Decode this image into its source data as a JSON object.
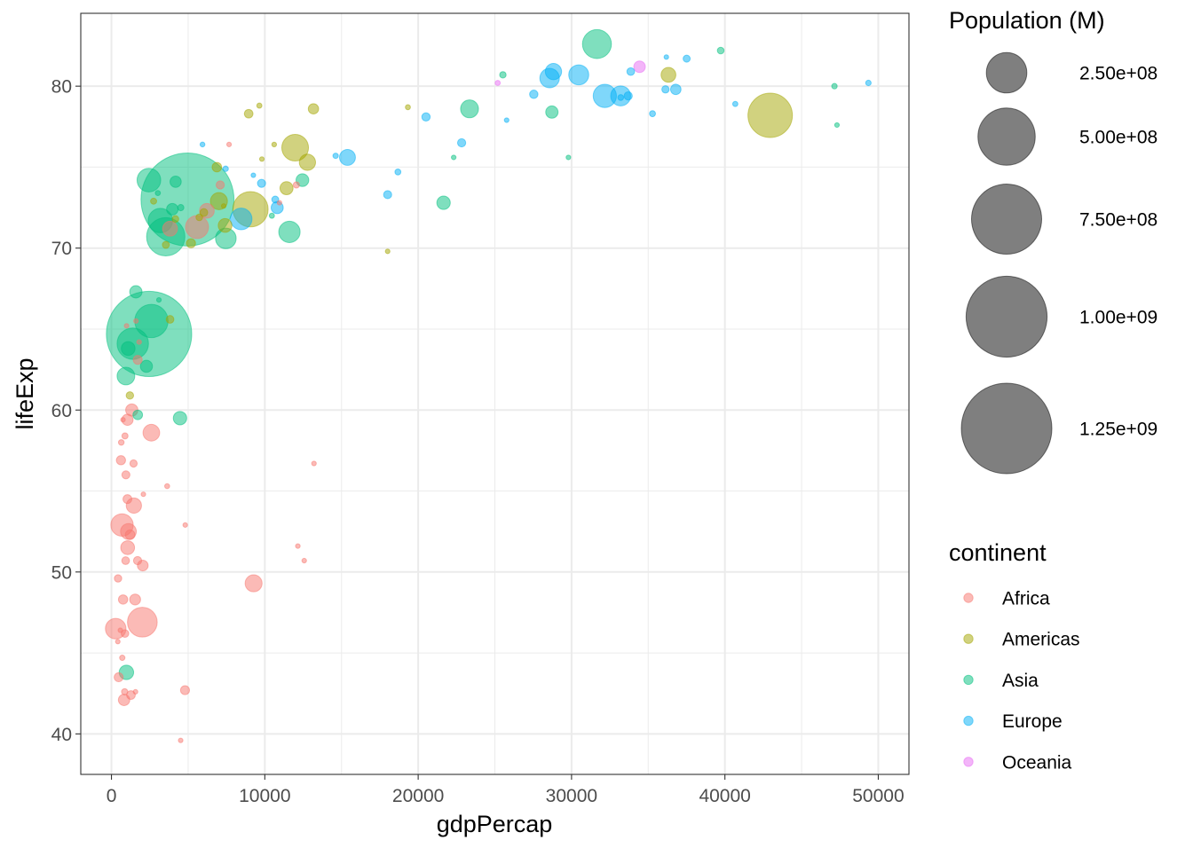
{
  "chart_data": {
    "type": "scatter",
    "xlabel": "gdpPercap",
    "ylabel": "lifeExp",
    "xlim": [
      -2000,
      52000
    ],
    "ylim": [
      37.5,
      84.5
    ],
    "x_ticks": [
      0,
      10000,
      20000,
      30000,
      40000,
      50000
    ],
    "x_tick_labels": [
      "0",
      "10000",
      "20000",
      "30000",
      "40000",
      "50000"
    ],
    "y_ticks": [
      40,
      50,
      60,
      70,
      80
    ],
    "y_tick_labels": [
      "40",
      "50",
      "60",
      "70",
      "80"
    ],
    "grid": true,
    "legend_position": "right",
    "size_legend": {
      "title": "Population (M)",
      "breaks": [
        250000000,
        500000000,
        750000000,
        1000000000,
        1250000000
      ],
      "labels": [
        "2.50e+08",
        "5.00e+08",
        "7.50e+08",
        "1.00e+09",
        "1.25e+09"
      ]
    },
    "color_legend": {
      "title": "continent",
      "entries": [
        {
          "name": "Africa",
          "color": "#F8766D"
        },
        {
          "name": "Americas",
          "color": "#A3A500"
        },
        {
          "name": "Asia",
          "color": "#00BF7D"
        },
        {
          "name": "Europe",
          "color": "#00B0F6"
        },
        {
          "name": "Oceania",
          "color": "#E76BF3"
        }
      ]
    },
    "series": [
      {
        "name": "Africa",
        "color": "#F8766D",
        "points": [
          [
            6223,
            72.3,
            33000000
          ],
          [
            4797,
            42.7,
            12400000
          ],
          [
            1441,
            56.7,
            8100000
          ],
          [
            12570,
            50.7,
            1600000
          ],
          [
            1217,
            52.3,
            14300000
          ],
          [
            430,
            49.6,
            8400000
          ],
          [
            2042,
            50.4,
            17700000
          ],
          [
            706,
            44.7,
            4400000
          ],
          [
            1704,
            50.7,
            10200000
          ],
          [
            986,
            65.2,
            700000
          ],
          [
            278,
            46.5,
            64600000
          ],
          [
            3633,
            55.3,
            3800000
          ],
          [
            1545,
            48.3,
            18000000
          ],
          [
            2082,
            54.8,
            500000
          ],
          [
            5581,
            71.3,
            80300000
          ],
          [
            12154,
            51.6,
            600000
          ],
          [
            641,
            58.0,
            4900000
          ],
          [
            690,
            52.9,
            76500000
          ],
          [
            13206,
            56.7,
            1500000
          ],
          [
            753,
            59.4,
            1700000
          ],
          [
            1327,
            60.0,
            22900000
          ],
          [
            943,
            56.0,
            9900000
          ],
          [
            580,
            46.4,
            1500000
          ],
          [
            1463,
            54.1,
            35600000
          ],
          [
            1569,
            42.6,
            2000000
          ],
          [
            415,
            45.7,
            3200000
          ],
          [
            12057,
            73.9,
            6000000
          ],
          [
            1045,
            59.4,
            19200000
          ],
          [
            759,
            48.3,
            13300000
          ],
          [
            1042,
            54.5,
            12000000
          ],
          [
            1804,
            64.2,
            3300000
          ],
          [
            10957,
            72.8,
            1300000
          ],
          [
            3820,
            71.2,
            33800000
          ],
          [
            824,
            42.1,
            19900000
          ],
          [
            4811,
            52.9,
            2100000
          ],
          [
            620,
            56.9,
            12900000
          ],
          [
            2014,
            46.9,
            135000000
          ],
          [
            7670,
            76.4,
            800000
          ],
          [
            882,
            46.2,
            8900000
          ],
          [
            1598,
            65.5,
            200000
          ],
          [
            1712,
            63.1,
            12300000
          ],
          [
            862,
            42.6,
            6100000
          ],
          [
            926,
            50.7,
            9100000
          ],
          [
            9270,
            49.3,
            44000000
          ],
          [
            2602,
            58.6,
            42300000
          ],
          [
            4513,
            39.6,
            1100000
          ],
          [
            1107,
            52.5,
            38100000
          ],
          [
            883,
            58.4,
            5700000
          ],
          [
            7093,
            73.9,
            10300000
          ],
          [
            1056,
            51.5,
            29200000
          ],
          [
            1271,
            42.4,
            11700000
          ],
          [
            470,
            43.5,
            12300000
          ]
        ]
      },
      {
        "name": "Americas",
        "color": "#A3A500",
        "points": [
          [
            12779,
            75.3,
            40300000
          ],
          [
            3822,
            65.6,
            9100000
          ],
          [
            9066,
            72.4,
            190000000
          ],
          [
            36319,
            80.7,
            33400000
          ],
          [
            13172,
            78.6,
            16300000
          ],
          [
            7007,
            72.9,
            44200000
          ],
          [
            9645,
            78.8,
            4100000
          ],
          [
            8948,
            78.3,
            11400000
          ],
          [
            6025,
            72.2,
            9300000
          ],
          [
            6873,
            75.0,
            13800000
          ],
          [
            5728,
            71.9,
            6900000
          ],
          [
            5186,
            70.3,
            12600000
          ],
          [
            1202,
            60.9,
            8500000
          ],
          [
            3548,
            70.2,
            7500000
          ],
          [
            7321,
            72.6,
            2800000
          ],
          [
            11978,
            76.2,
            108700000
          ],
          [
            2749,
            72.9,
            5700000
          ],
          [
            9809,
            75.5,
            3200000
          ],
          [
            4173,
            71.8,
            6700000
          ],
          [
            7409,
            71.4,
            28700000
          ],
          [
            19329,
            78.7,
            3900000
          ],
          [
            18009,
            69.8,
            1100000
          ],
          [
            42952,
            78.2,
            301100000
          ],
          [
            10611,
            76.4,
            3400000
          ],
          [
            11416,
            73.7,
            26100000
          ]
        ]
      },
      {
        "name": "Asia",
        "color": "#00BF7D",
        "points": [
          [
            975,
            43.8,
            31900000
          ],
          [
            29796,
            75.6,
            700000
          ],
          [
            1391,
            64.1,
            150400000
          ],
          [
            1714,
            59.7,
            14100000
          ],
          [
            4959,
            73.0,
            1318700000
          ],
          [
            39725,
            82.2,
            6900000
          ],
          [
            2452,
            64.7,
            1110400000
          ],
          [
            3541,
            70.7,
            223500000
          ],
          [
            11606,
            71.0,
            69500000
          ],
          [
            4471,
            59.5,
            27500000
          ],
          [
            25523,
            80.7,
            6400000
          ],
          [
            31656,
            82.6,
            127500000
          ],
          [
            4519,
            72.5,
            6100000
          ],
          [
            1593,
            67.3,
            23300000
          ],
          [
            23348,
            78.6,
            49000000
          ],
          [
            47307,
            77.6,
            2500000
          ],
          [
            10461,
            72.0,
            4000000
          ],
          [
            12452,
            74.2,
            24800000
          ],
          [
            3096,
            66.8,
            2900000
          ],
          [
            944,
            62.1,
            47800000
          ],
          [
            1091,
            63.8,
            28900000
          ],
          [
            22316,
            75.6,
            3200000
          ],
          [
            2606,
            65.5,
            169300000
          ],
          [
            3190,
            71.7,
            91100000
          ],
          [
            21655,
            72.8,
            27600000
          ],
          [
            47143,
            80.0,
            4600000
          ],
          [
            3970,
            72.4,
            20400000
          ],
          [
            4185,
            74.1,
            19300000
          ],
          [
            28718,
            78.4,
            23200000
          ],
          [
            7458,
            70.6,
            65100000
          ],
          [
            2442,
            74.2,
            85300000
          ],
          [
            3025,
            73.4,
            4000000
          ],
          [
            2281,
            62.7,
            22200000
          ]
        ]
      },
      {
        "name": "Europe",
        "color": "#00B0F6",
        "points": [
          [
            5937,
            76.4,
            3600000
          ],
          [
            36126,
            79.8,
            8200000
          ],
          [
            33693,
            79.4,
            10400000
          ],
          [
            7446,
            74.9,
            4600000
          ],
          [
            10681,
            73.0,
            7300000
          ],
          [
            14619,
            75.7,
            4500000
          ],
          [
            22834,
            76.5,
            10200000
          ],
          [
            35278,
            78.3,
            5500000
          ],
          [
            33207,
            79.3,
            5200000
          ],
          [
            30470,
            80.7,
            61100000
          ],
          [
            32170,
            79.4,
            82400000
          ],
          [
            27538,
            79.5,
            10700000
          ],
          [
            18009,
            73.3,
            10000000
          ],
          [
            36181,
            81.8,
            300000
          ],
          [
            40676,
            78.9,
            4100000
          ],
          [
            28570,
            80.5,
            58100000
          ],
          [
            9254,
            74.5,
            700000
          ],
          [
            36798,
            79.8,
            16600000
          ],
          [
            49357,
            80.2,
            4600000
          ],
          [
            15390,
            75.6,
            38500000
          ],
          [
            20510,
            78.1,
            10600000
          ],
          [
            10808,
            72.5,
            22300000
          ],
          [
            9787,
            74.0,
            10200000
          ],
          [
            18678,
            74.7,
            5400000
          ],
          [
            25768,
            77.9,
            2000000
          ],
          [
            28821,
            80.9,
            40400000
          ],
          [
            33860,
            80.9,
            9000000
          ],
          [
            37506,
            81.7,
            7600000
          ],
          [
            8458,
            71.8,
            71200000
          ],
          [
            33203,
            79.4,
            60800000
          ]
        ]
      },
      {
        "name": "Oceania",
        "color": "#E76BF3",
        "points": [
          [
            34435,
            81.2,
            20400000
          ],
          [
            25185,
            80.2,
            4100000
          ]
        ]
      }
    ]
  }
}
